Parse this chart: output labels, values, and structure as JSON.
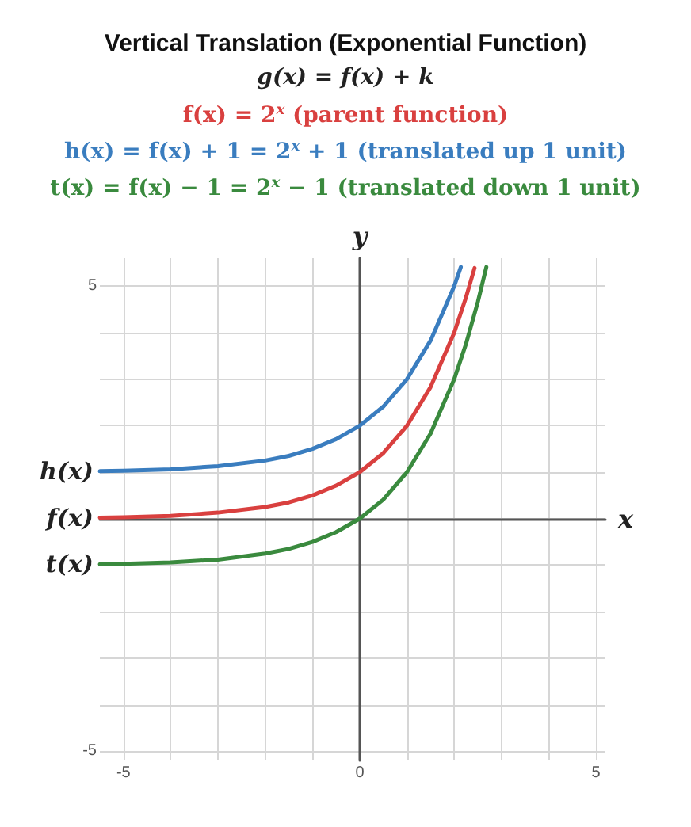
{
  "chart_data": {
    "type": "line",
    "title": "Vertical Translation (Exponential Function)",
    "subtitle": "g(x) = f(x) + k",
    "annotations": [
      "f(x) = 2$^{x}$ (parent function)",
      "h(x) = f(x) + 1 = 2$^{x}$ + 1 (translated up 1 unit)",
      "t(x) = f(x) − 1 = 2$^{x}$ − 1 (translated down 1 unit)"
    ],
    "xlabel": "x",
    "ylabel": "y",
    "xlim": [
      -5.5,
      5.2
    ],
    "ylim": [
      -5.2,
      5.6
    ],
    "xticks": [
      {
        "value": -5,
        "label": "-5"
      },
      {
        "value": -4,
        "label": null
      },
      {
        "value": -3,
        "label": null
      },
      {
        "value": -2,
        "label": null
      },
      {
        "value": -1,
        "label": null
      },
      {
        "value": 0,
        "label": "0"
      },
      {
        "value": 1,
        "label": null
      },
      {
        "value": 2,
        "label": null
      },
      {
        "value": 3,
        "label": null
      },
      {
        "value": 4,
        "label": null
      },
      {
        "value": 5,
        "label": "5"
      }
    ],
    "yticks": [
      {
        "value": -5,
        "label": "-5"
      },
      {
        "value": -4,
        "label": null
      },
      {
        "value": -3,
        "label": null
      },
      {
        "value": -2,
        "label": null
      },
      {
        "value": -1,
        "label": null
      },
      {
        "value": 0,
        "label": null
      },
      {
        "value": 1,
        "label": null
      },
      {
        "value": 2,
        "label": null
      },
      {
        "value": 3,
        "label": null
      },
      {
        "value": 4,
        "label": null
      },
      {
        "value": 5,
        "label": "5"
      }
    ],
    "grid": true,
    "legend": "left",
    "marker": "none",
    "line_style": "solid",
    "series": [
      {
        "name": "f(x)",
        "color": "#d9403f",
        "x": [
          -5.5,
          -5,
          -4,
          -3,
          -2,
          -1.5,
          -1,
          -0.5,
          0,
          0.5,
          1,
          1.5,
          2,
          2.25,
          2.43
        ],
        "values": [
          0.02,
          0.03,
          0.06,
          0.13,
          0.25,
          0.35,
          0.5,
          0.71,
          1,
          1.41,
          2,
          2.83,
          4,
          4.76,
          5.39
        ]
      },
      {
        "name": "h(x)",
        "color": "#3a7dbf",
        "x": [
          -5.5,
          -5,
          -4,
          -3,
          -2,
          -1.5,
          -1,
          -0.5,
          0,
          0.5,
          1,
          1.5,
          2,
          2.14
        ],
        "values": [
          1.02,
          1.03,
          1.06,
          1.13,
          1.25,
          1.35,
          1.5,
          1.71,
          2,
          2.41,
          3,
          3.83,
          5,
          5.41
        ]
      },
      {
        "name": "t(x)",
        "color": "#3a8a3e",
        "x": [
          -5.5,
          -5,
          -4,
          -3,
          -2,
          -1.5,
          -1,
          -0.5,
          0,
          0.5,
          1,
          1.5,
          2,
          2.25,
          2.5,
          2.68
        ],
        "values": [
          -0.98,
          -0.97,
          -0.94,
          -0.88,
          -0.75,
          -0.65,
          -0.5,
          -0.29,
          0,
          0.41,
          1,
          1.83,
          3,
          3.76,
          4.66,
          5.41
        ]
      }
    ]
  }
}
